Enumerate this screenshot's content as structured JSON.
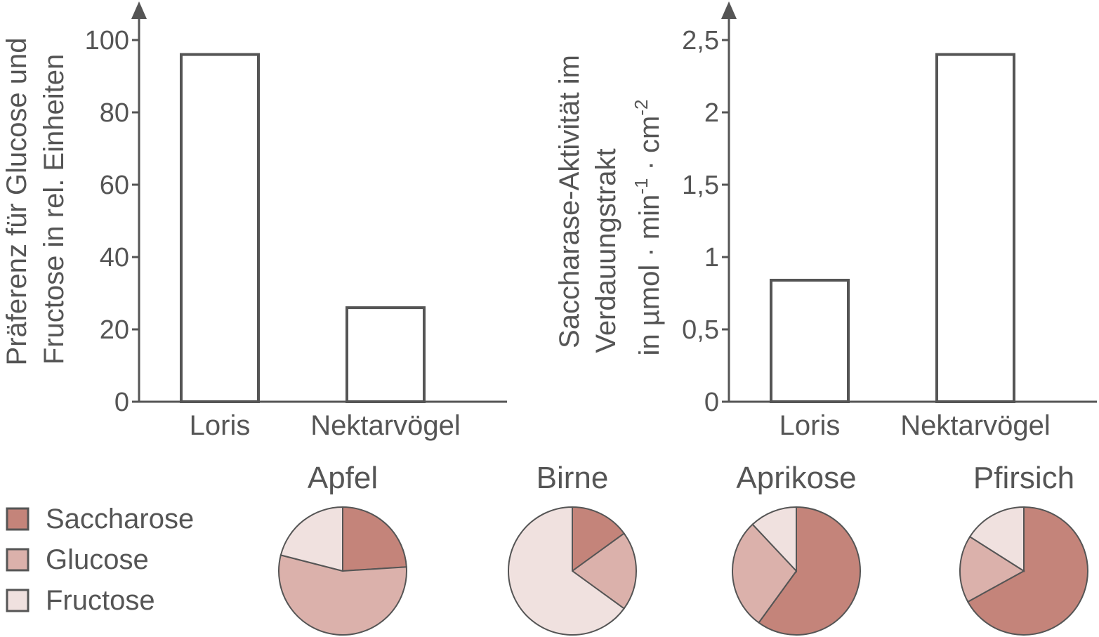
{
  "colors": {
    "saccharose": "#c4847a",
    "glucose": "#dbb1ab",
    "fructose": "#f0e1df",
    "ink": "#555555"
  },
  "chart_data": [
    {
      "type": "bar",
      "categories": [
        "Loris",
        "Nektarvögel"
      ],
      "values": [
        96,
        26
      ],
      "ylabel_lines": [
        "Präferenz für Glucose und",
        "Fructose in rel. Einheiten"
      ],
      "ylim": [
        0,
        100
      ],
      "yticks": [
        "0",
        "20",
        "40",
        "60",
        "80",
        "100"
      ],
      "grid": false
    },
    {
      "type": "bar",
      "categories": [
        "Loris",
        "Nektarvögel"
      ],
      "values": [
        0.84,
        2.4
      ],
      "ylabel_lines": [
        "Saccharase-Aktivität im",
        "Verdauungstrakt"
      ],
      "ylabel_unit": {
        "prefix": "in µmol · min",
        "exp1": "-1",
        "mid": " · cm",
        "exp2": "-2"
      },
      "ylim": [
        0,
        2.5
      ],
      "yticks": [
        "0",
        "0,5",
        "1",
        "1,5",
        "2",
        "2,5"
      ],
      "grid": false
    },
    {
      "type": "pie",
      "legend": {
        "position": "left",
        "entries": [
          "Saccharose",
          "Glucose",
          "Fructose"
        ]
      },
      "pies": [
        {
          "title": "Apfel",
          "values": {
            "Saccharose": 24,
            "Glucose": 55,
            "Fructose": 21
          }
        },
        {
          "title": "Birne",
          "values": {
            "Saccharose": 15,
            "Glucose": 20,
            "Fructose": 65
          }
        },
        {
          "title": "Aprikose",
          "values": {
            "Saccharose": 60,
            "Glucose": 28,
            "Fructose": 12
          }
        },
        {
          "title": "Pfirsich",
          "values": {
            "Saccharose": 67,
            "Glucose": 17,
            "Fructose": 16
          }
        }
      ]
    }
  ]
}
